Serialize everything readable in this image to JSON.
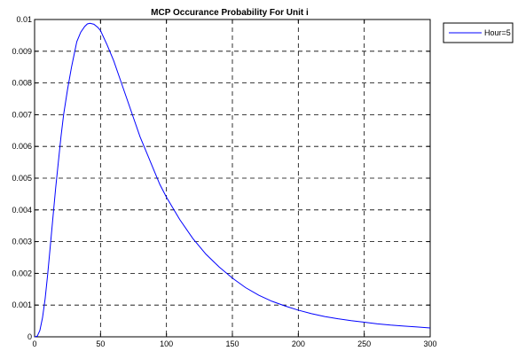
{
  "chart_data": {
    "type": "line",
    "title": "MCP Occurance Probability For Unit i",
    "xlabel": "",
    "ylabel": "",
    "xlim": [
      0,
      300
    ],
    "ylim": [
      0,
      0.01
    ],
    "x_ticks": [
      0,
      50,
      100,
      150,
      200,
      250,
      300
    ],
    "x_tick_labels": [
      "0",
      "50",
      "100",
      "150",
      "200",
      "250",
      "300"
    ],
    "y_ticks": [
      0,
      0.001,
      0.002,
      0.003,
      0.004,
      0.005,
      0.006,
      0.007,
      0.008,
      0.009,
      0.01
    ],
    "y_tick_labels": [
      "0",
      "0.001",
      "0.002",
      "0.003",
      "0.004",
      "0.005",
      "0.006",
      "0.007",
      "0.008",
      "0.009",
      "0.01"
    ],
    "grid": true,
    "legend_placement": "outside-top-right",
    "series": [
      {
        "name": "Hour=5",
        "color": "#0000ff",
        "x": [
          0,
          2,
          4,
          6,
          8,
          10,
          12,
          14,
          16,
          18,
          20,
          22,
          25,
          28,
          30,
          32,
          35,
          38,
          40,
          42,
          45,
          48,
          50,
          55,
          60,
          65,
          70,
          75,
          80,
          85,
          90,
          95,
          100,
          110,
          120,
          130,
          140,
          150,
          160,
          170,
          180,
          190,
          200,
          210,
          220,
          230,
          240,
          250,
          260,
          270,
          280,
          290,
          300
        ],
        "y": [
          0,
          2e-05,
          0.0002,
          0.0006,
          0.0012,
          0.002,
          0.0029,
          0.0038,
          0.0047,
          0.0055,
          0.0063,
          0.007,
          0.0078,
          0.0085,
          0.0089,
          0.0093,
          0.0096,
          0.00978,
          0.00986,
          0.00988,
          0.00985,
          0.00975,
          0.00965,
          0.0092,
          0.0087,
          0.0081,
          0.0075,
          0.0069,
          0.0063,
          0.0058,
          0.0053,
          0.0048,
          0.0044,
          0.0037,
          0.0031,
          0.0026,
          0.0022,
          0.00185,
          0.00155,
          0.00131,
          0.00112,
          0.00097,
          0.00084,
          0.00073,
          0.00064,
          0.00057,
          0.00051,
          0.00046,
          0.00041,
          0.00037,
          0.00034,
          0.00031,
          0.00028
        ]
      }
    ]
  }
}
